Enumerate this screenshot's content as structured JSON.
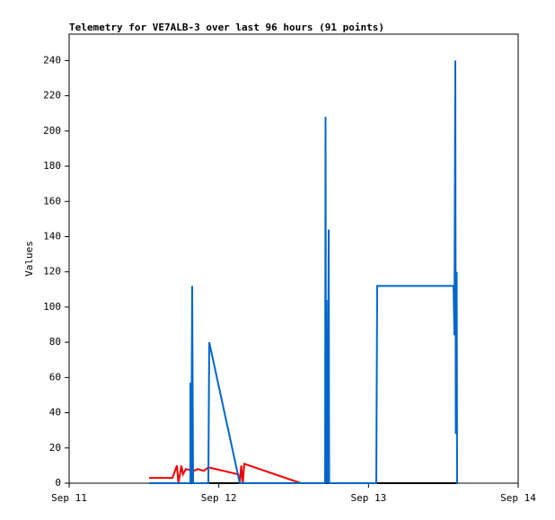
{
  "chart_data": {
    "type": "line",
    "title": "Telemetry for VE7ALB-3 over last 96 hours (91 points)",
    "y_label": "Values",
    "xlim": [
      0,
      3
    ],
    "xticks": [
      {
        "value": 0,
        "label": "Sep 11"
      },
      {
        "value": 1,
        "label": "Sep 12"
      },
      {
        "value": 2,
        "label": "Sep 13"
      },
      {
        "value": 3,
        "label": "Sep 14"
      }
    ],
    "ylim": [
      0,
      255
    ],
    "yticks": [
      0,
      20,
      40,
      60,
      80,
      100,
      120,
      140,
      160,
      180,
      200,
      220,
      240
    ],
    "series": [
      {
        "color": "#000000",
        "x": [
          0.534,
          2.598
        ],
        "values": [
          0,
          0
        ]
      },
      {
        "color": "#ee0000",
        "x": [
          0.534,
          0.69,
          0.72,
          0.73,
          0.75,
          0.76,
          0.78,
          0.83,
          0.86,
          0.9,
          0.93,
          1.13,
          1.14,
          1.15,
          1.16,
          1.17,
          1.548
        ],
        "values": [
          3,
          3,
          10,
          0,
          10,
          5,
          8,
          7,
          8,
          7,
          9,
          5,
          0,
          10,
          0,
          11,
          0
        ]
      },
      {
        "color": "#0066cc",
        "x": [
          0.534,
          0.81,
          0.81,
          0.816,
          0.822,
          0.828,
          0.93,
          0.936,
          1.14,
          1.71,
          1.713,
          1.716,
          1.719,
          1.722,
          1.725,
          1.728,
          1.734,
          1.737,
          2.052,
          2.058,
          2.568,
          2.574,
          2.58,
          2.583,
          2.589,
          2.592,
          2.598
        ],
        "values": [
          0,
          0,
          57,
          0,
          112,
          0,
          0,
          80,
          0,
          0,
          208,
          0,
          104,
          0,
          72,
          0,
          144,
          0,
          0,
          112,
          112,
          84,
          240,
          28,
          120,
          0,
          0
        ]
      }
    ]
  }
}
